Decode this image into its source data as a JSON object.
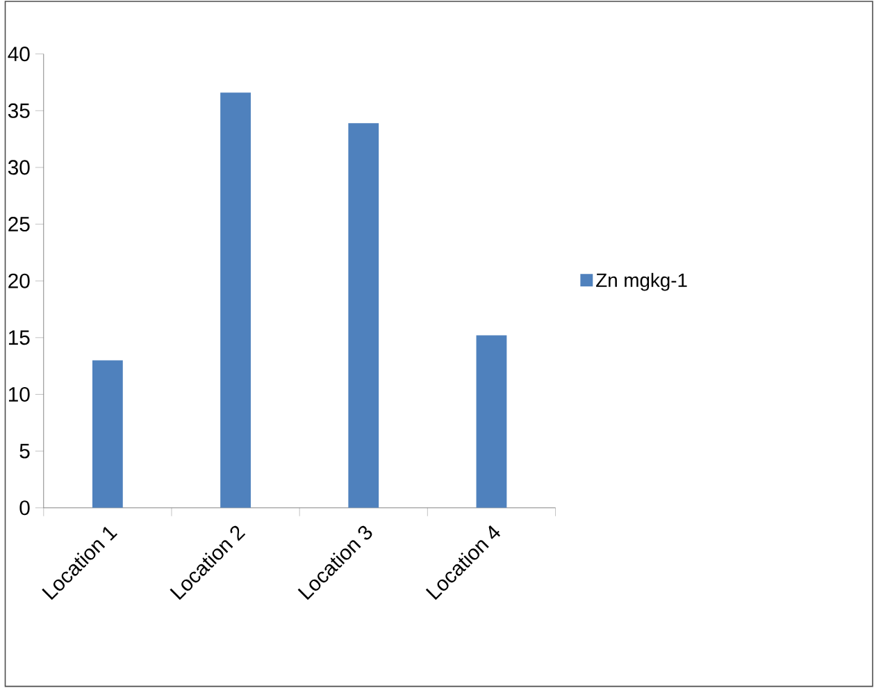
{
  "chart_data": {
    "type": "bar",
    "categories": [
      "Location 1",
      "Location 2",
      "Location 3",
      "Location 4"
    ],
    "series": [
      {
        "name": "Zn mgkg-1",
        "color": "#4f81bd",
        "values": [
          13.0,
          36.6,
          33.9,
          15.2
        ]
      }
    ],
    "ylim": [
      0,
      40
    ],
    "yticks": [
      0,
      5,
      10,
      15,
      20,
      25,
      30,
      35,
      40
    ],
    "grid": false,
    "legend": "right"
  }
}
